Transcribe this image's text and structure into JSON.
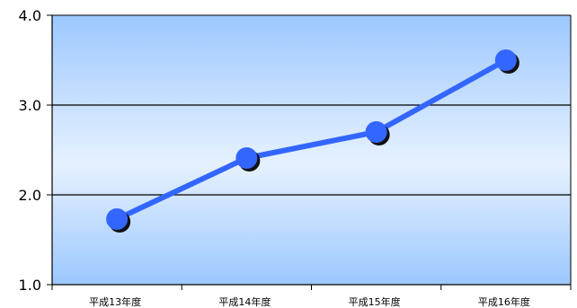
{
  "chart_data": {
    "type": "line",
    "categories": [
      "平成13年度",
      "平成14年度",
      "平成15年度",
      "平成16年度"
    ],
    "series": [
      {
        "values": [
          1.73,
          2.41,
          2.7,
          3.5
        ]
      }
    ],
    "ylim": [
      1.0,
      4.0
    ],
    "yticks": [
      "1.0",
      "2.0",
      "3.0",
      "4.0"
    ],
    "grid": true,
    "colors": {
      "line": "#3366ff",
      "marker_shadow": "#111111",
      "plot_top": "#9cc8ff",
      "plot_mid": "#e6f1ff",
      "plot_bottom": "#9cc8ff"
    }
  }
}
